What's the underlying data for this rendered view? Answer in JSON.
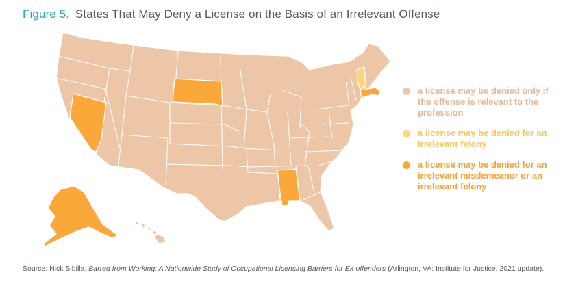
{
  "title": {
    "figure_label": "Figure 5.",
    "text": "States That May Deny a License on the Basis of an Irrelevant Offense"
  },
  "colors": {
    "relevant_only": "#ecc6a6",
    "felony": "#fcd77a",
    "misdemeanor_or_felony": "#fba83b",
    "border": "#ffffff",
    "title_accent": "#2aa6b3"
  },
  "legend": [
    {
      "key": "relevant_only",
      "color": "#ecc6a6",
      "text_color": "#e3b797",
      "label": "a license may be denied only if the offense is relevant to the profession"
    },
    {
      "key": "felony",
      "color": "#fcd77a",
      "text_color": "#f6c75a",
      "label": "a license may be denied for an irrelevant felony"
    },
    {
      "key": "misdemeanor_or_felony",
      "color": "#fba83b",
      "text_color": "#f7a035",
      "label": "a license may be denied for an irrelevant misdemeanor or an irrelevant felony"
    }
  ],
  "map_data": {
    "type": "choropleth",
    "region": "United States",
    "highlighted_states": {
      "misdemeanor_or_felony": [
        "Nevada",
        "South Dakota",
        "Alabama",
        "Massachusetts",
        "Alaska"
      ],
      "felony": [
        "Vermont"
      ]
    },
    "default_category": "relevant_only"
  },
  "source": {
    "prefix": "Source: Nick Sibilla, ",
    "book": "Barred from Working: A Nationwide Study of Occupational Licensing Barriers for Ex-offenders",
    "suffix": " (Arlington, VA: Institute for Justice, 2021 update)."
  }
}
